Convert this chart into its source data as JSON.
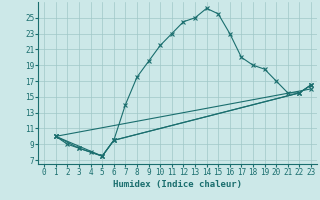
{
  "title": "",
  "xlabel": "Humidex (Indice chaleur)",
  "bg_color": "#cce8e8",
  "grid_color": "#a0c8c8",
  "line_color": "#1a6e6e",
  "xlim": [
    -0.5,
    23.5
  ],
  "ylim": [
    6.5,
    27
  ],
  "xticks": [
    0,
    1,
    2,
    3,
    4,
    5,
    6,
    7,
    8,
    9,
    10,
    11,
    12,
    13,
    14,
    15,
    16,
    17,
    18,
    19,
    20,
    21,
    22,
    23
  ],
  "yticks": [
    7,
    9,
    11,
    13,
    15,
    17,
    19,
    21,
    23,
    25
  ],
  "main_x": [
    1,
    2,
    3,
    4,
    5,
    6,
    7,
    8,
    9,
    10,
    11,
    12,
    13,
    14,
    15,
    16,
    17,
    18,
    19,
    20,
    21,
    22,
    23
  ],
  "main_y": [
    10,
    9,
    8.5,
    8,
    7.5,
    9.5,
    14,
    17.5,
    19.5,
    21.5,
    23,
    24.5,
    25.0,
    26.2,
    25.5,
    23.0,
    20.0,
    19.0,
    18.5,
    17.0,
    15.5,
    15.5,
    16.5
  ],
  "line1_x": [
    1,
    5,
    6,
    22,
    23
  ],
  "line1_y": [
    10,
    7.5,
    9.5,
    15.5,
    16.5
  ],
  "line2_x": [
    1,
    3,
    5,
    6,
    22,
    23
  ],
  "line2_y": [
    10,
    8.5,
    7.5,
    9.5,
    15.5,
    16.5
  ],
  "line3_x": [
    1,
    23
  ],
  "line3_y": [
    10,
    16.0
  ]
}
